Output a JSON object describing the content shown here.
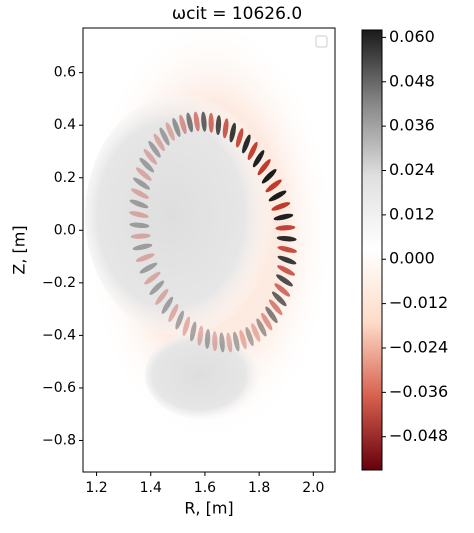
{
  "chart_data": {
    "type": "field",
    "title": "ωcit = 10626.0",
    "xlabel": "R, [m]",
    "ylabel": "Z, [m]",
    "xlim": [
      1.15,
      2.08
    ],
    "xticks": [
      1.2,
      1.4,
      1.6,
      1.8,
      {
        "value": 2,
        "label": "2.0"
      }
    ],
    "ylim": [
      -0.92,
      0.77
    ],
    "yticks": [
      0.6,
      0.4,
      0.2,
      {
        "value": 0,
        "label": "0.0"
      },
      {
        "value": -0.2,
        "label": "−0.2"
      },
      {
        "value": -0.4,
        "label": "−0.4"
      },
      {
        "value": -0.6,
        "label": "−0.6"
      },
      {
        "value": -0.8,
        "label": "−0.8"
      }
    ],
    "clim": [
      -0.057,
      0.062
    ],
    "cticks": [
      {
        "value": 0.06,
        "label": "0.060"
      },
      {
        "value": 0.048,
        "label": "0.048"
      },
      {
        "value": 0.036,
        "label": "0.036"
      },
      {
        "value": 0.024,
        "label": "0.024"
      },
      {
        "value": 0.012,
        "label": "0.012"
      },
      {
        "value": 0,
        "label": "0.000"
      },
      {
        "value": -0.012,
        "label": "−0.012"
      },
      {
        "value": -0.024,
        "label": "−0.024"
      },
      {
        "value": -0.036,
        "label": "−0.036"
      },
      {
        "value": -0.048,
        "label": "−0.048"
      }
    ],
    "colormap": [
      "#67000d",
      "#d6604d",
      "#fddbc7",
      "#ffffff",
      "#e0e0e0",
      "#878787",
      "#1a1a1a"
    ]
  }
}
